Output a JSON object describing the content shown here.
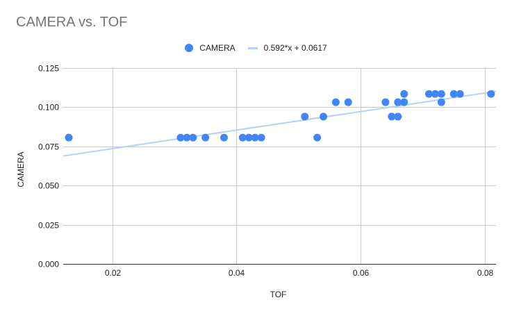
{
  "chart_data": {
    "type": "scatter",
    "title": "CAMERA vs. TOF",
    "xlabel": "TOF",
    "ylabel": "CAMERA",
    "xlim": [
      0.0121,
      0.0818
    ],
    "ylim": [
      0,
      0.125
    ],
    "xticks": [
      0.02,
      0.04,
      0.06,
      0.08
    ],
    "xtick_labels": [
      "0.02",
      "0.04",
      "0.06",
      "0.08"
    ],
    "yticks": [
      0,
      0.025,
      0.05,
      0.075,
      0.1,
      0.125
    ],
    "ytick_labels": [
      "0.000",
      "0.025",
      "0.050",
      "0.075",
      "0.100",
      "0.125"
    ],
    "grid": true,
    "legend_position": "top",
    "series": [
      {
        "name": "CAMERA",
        "kind": "scatter",
        "color": "#4285f4",
        "points": [
          [
            0.013,
            0.0806
          ],
          [
            0.031,
            0.0806
          ],
          [
            0.032,
            0.0806
          ],
          [
            0.033,
            0.0806
          ],
          [
            0.035,
            0.0806
          ],
          [
            0.038,
            0.0806
          ],
          [
            0.041,
            0.0806
          ],
          [
            0.042,
            0.0806
          ],
          [
            0.043,
            0.0806
          ],
          [
            0.044,
            0.0806
          ],
          [
            0.051,
            0.094
          ],
          [
            0.053,
            0.0806
          ],
          [
            0.054,
            0.094
          ],
          [
            0.056,
            0.1032
          ],
          [
            0.058,
            0.1032
          ],
          [
            0.064,
            0.1032
          ],
          [
            0.065,
            0.094
          ],
          [
            0.066,
            0.094
          ],
          [
            0.066,
            0.1032
          ],
          [
            0.067,
            0.1032
          ],
          [
            0.067,
            0.1085
          ],
          [
            0.071,
            0.1085
          ],
          [
            0.072,
            0.1085
          ],
          [
            0.073,
            0.1085
          ],
          [
            0.073,
            0.1032
          ],
          [
            0.075,
            0.1085
          ],
          [
            0.076,
            0.1085
          ],
          [
            0.081,
            0.1085
          ]
        ]
      },
      {
        "name": "0.592*x + 0.0617",
        "kind": "trendline",
        "color": "#b7cff9",
        "slope": 0.592,
        "intercept": 0.0617
      }
    ]
  },
  "legend": {
    "items": [
      {
        "label": "CAMERA"
      },
      {
        "label": "0.592*x + 0.0617"
      }
    ]
  }
}
